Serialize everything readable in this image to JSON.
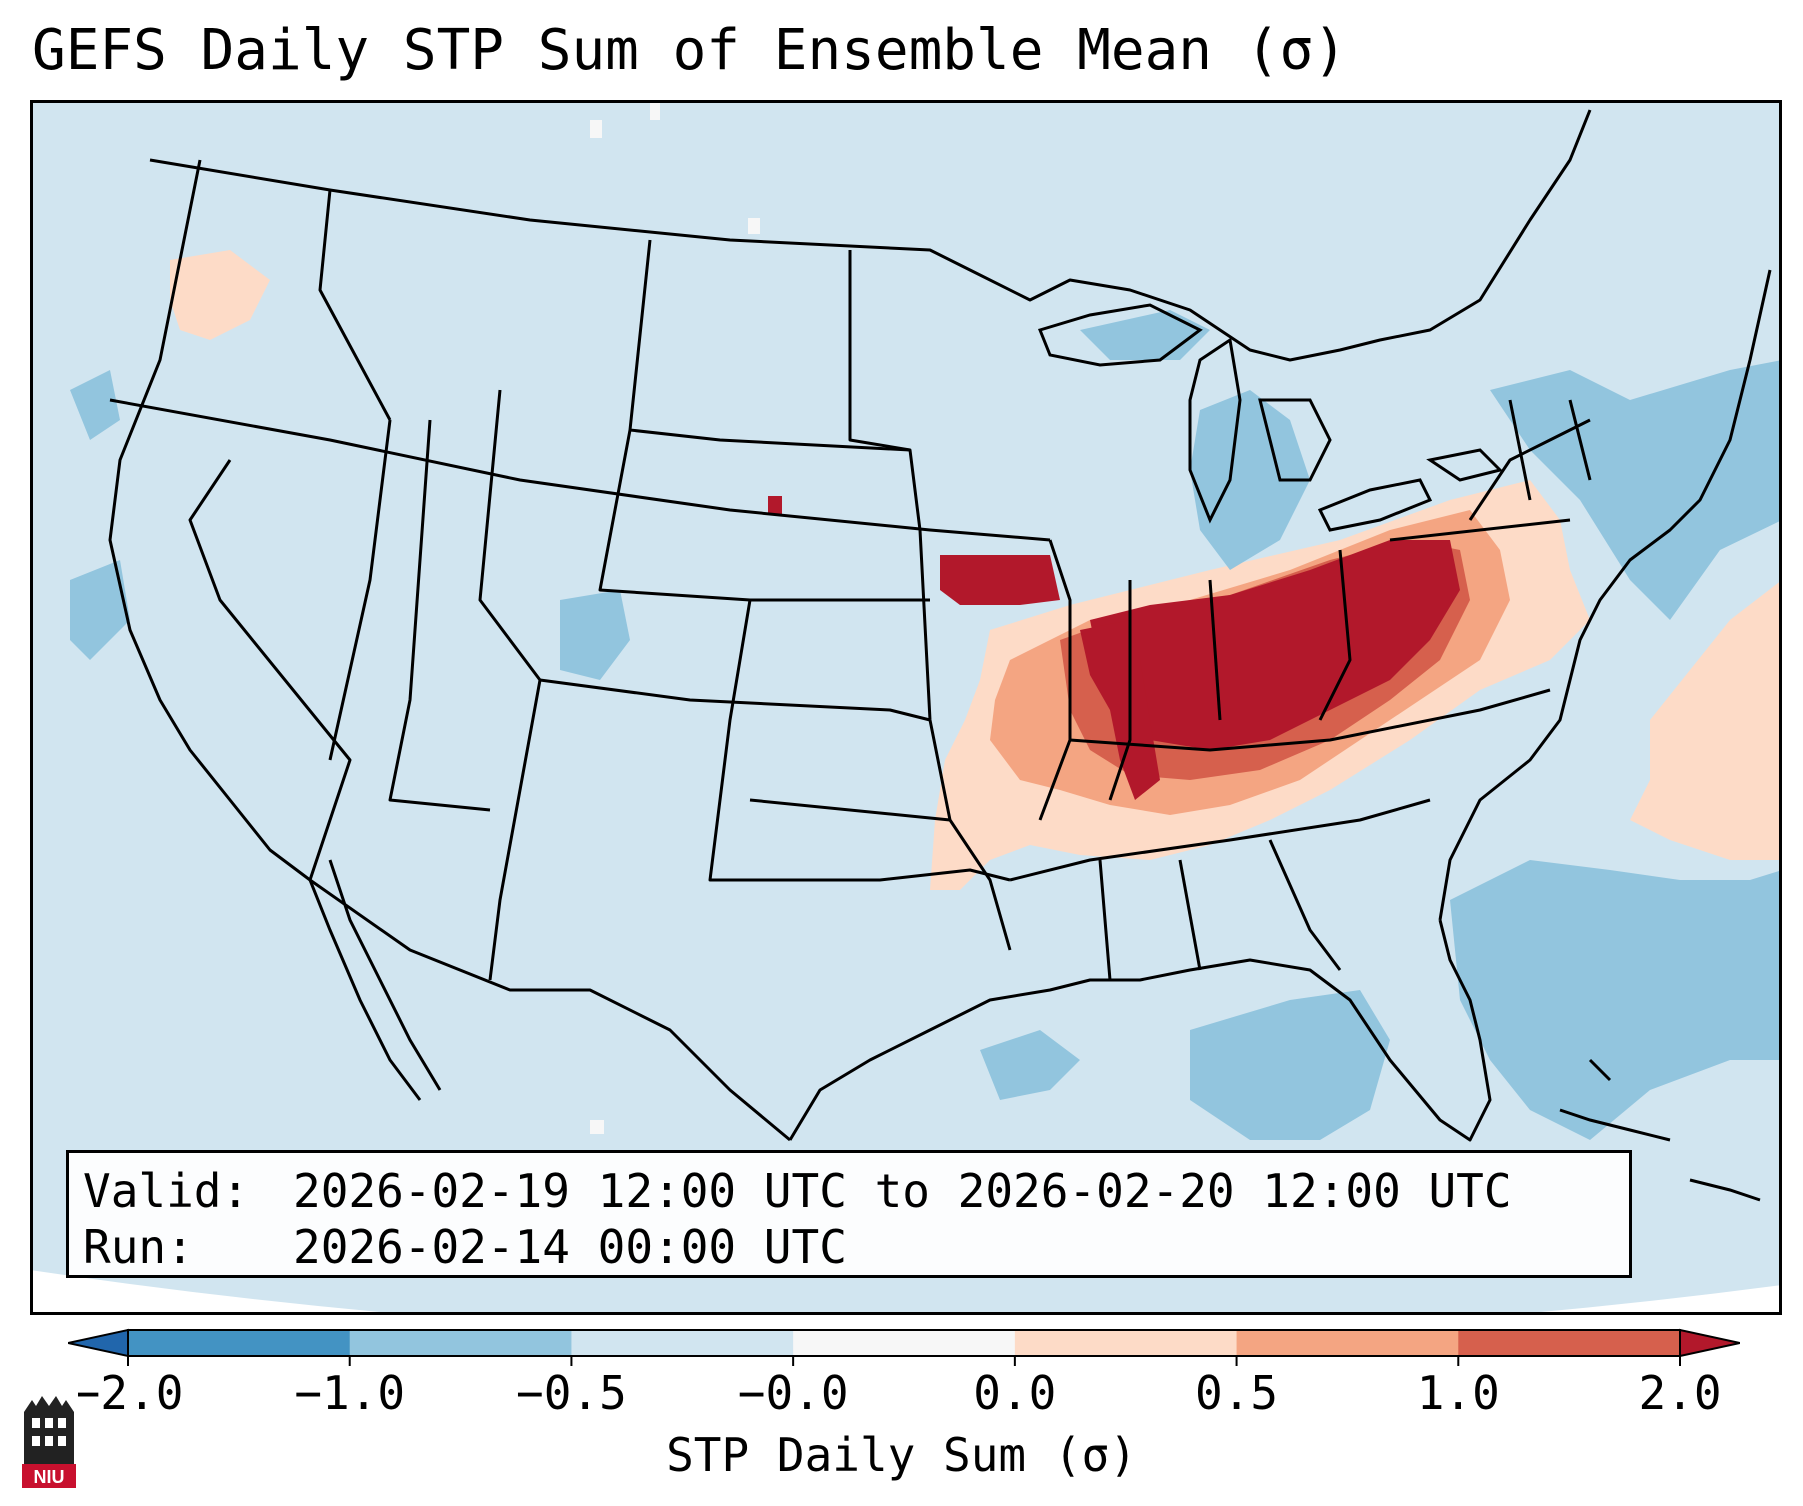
{
  "title": "GEFS Daily STP Sum of Ensemble Mean (σ)",
  "info": {
    "valid_label": "Valid:",
    "valid_value": "2026-02-19 12:00 UTC to 2026-02-20 12:00 UTC",
    "run_label": "Run:",
    "run_value": "2026-02-14 00:00 UTC"
  },
  "colorbar": {
    "label": "STP Daily Sum (σ)",
    "ticks": [
      "−2.0",
      "−1.0",
      "−0.5",
      "−0.0",
      "0.0",
      "0.5",
      "1.0",
      "2.0"
    ],
    "bins": [
      {
        "range": "<-2.0",
        "color": "#2166ac"
      },
      {
        "range": "-2.0 to -1.0",
        "color": "#4393c3"
      },
      {
        "range": "-1.0 to -0.5",
        "color": "#92c5de"
      },
      {
        "range": "-0.5 to -0.0",
        "color": "#d1e5f0"
      },
      {
        "range": "-0.0 to 0.0",
        "color": "#f7f7f7"
      },
      {
        "range": "0.0 to 0.5",
        "color": "#fddbc7"
      },
      {
        "range": "0.5 to 1.0",
        "color": "#f4a582"
      },
      {
        "range": "1.0 to 2.0",
        "color": "#d6604d"
      },
      {
        "range": ">2.0",
        "color": "#b2182b"
      }
    ]
  },
  "map": {
    "background_color": "#d1e5f0",
    "region": "Contiguous United States, southern Canada, northern Mexico, Gulf of Mexico, western Atlantic",
    "features": [
      "state borders",
      "national borders",
      "coastlines"
    ],
    "anomaly_areas": [
      {
        "area": "Ohio Valley / Indiana / Ohio / Illinois / Kentucky",
        "class": ">2.0"
      },
      {
        "area": "Missouri / Tennessee / West Virginia / Pennsylvania",
        "class": "0.5 to 2.0"
      },
      {
        "area": "Arkansas / Oklahoma border / northern Mississippi",
        "class": "0.0 to 0.5"
      },
      {
        "area": "Western Atlantic off Mid-Atlantic coast",
        "class": "0.0 to 1.0"
      },
      {
        "area": "Western Atlantic east of Florida / Bahamas",
        "class": "-1.0 to -0.5"
      },
      {
        "area": "Gulf of Mexico",
        "class": "-1.0 to -0.5"
      },
      {
        "area": "Great Lakes region",
        "class": "-1.0 to -0.5"
      }
    ]
  },
  "logo": {
    "text": "NIU",
    "color": "#c8102e"
  }
}
